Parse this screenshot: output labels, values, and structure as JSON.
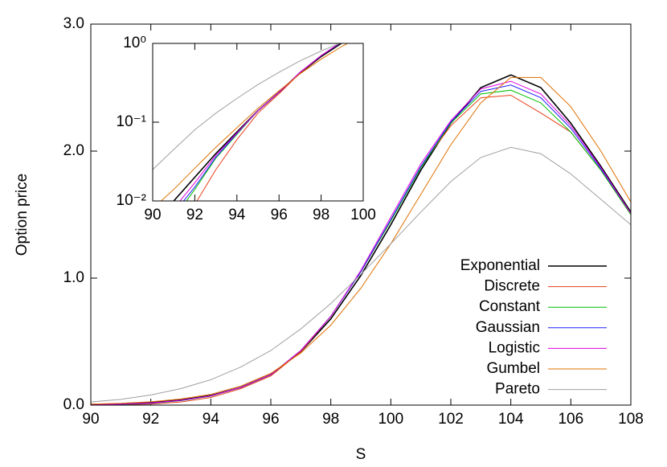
{
  "chart_data": {
    "type": "line",
    "xlabel": "S",
    "ylabel": "Option price",
    "x": [
      90,
      91,
      92,
      93,
      94,
      95,
      96,
      97,
      98,
      99,
      100,
      101,
      102,
      103,
      104,
      105,
      106,
      107,
      108
    ],
    "series": [
      {
        "name": "Exponential",
        "color": "#000000",
        "values": [
          0.005,
          0.01,
          0.02,
          0.04,
          0.075,
          0.14,
          0.24,
          0.42,
          0.68,
          1.02,
          1.42,
          1.85,
          2.22,
          2.5,
          2.6,
          2.5,
          2.22,
          1.88,
          1.52
        ]
      },
      {
        "name": "Discrete",
        "color": "#e8411a",
        "values": [
          0.002,
          0.004,
          0.009,
          0.025,
          0.06,
          0.13,
          0.23,
          0.42,
          0.7,
          1.05,
          1.45,
          1.88,
          2.2,
          2.42,
          2.44,
          2.3,
          2.15,
          1.85,
          1.5
        ]
      },
      {
        "name": "Constant",
        "color": "#00c000",
        "values": [
          0.003,
          0.006,
          0.014,
          0.035,
          0.07,
          0.14,
          0.24,
          0.43,
          0.7,
          1.05,
          1.45,
          1.87,
          2.22,
          2.45,
          2.48,
          2.38,
          2.15,
          1.85,
          1.5
        ]
      },
      {
        "name": "Gaussian",
        "color": "#2020ff",
        "values": [
          0.0035,
          0.007,
          0.015,
          0.036,
          0.072,
          0.14,
          0.24,
          0.43,
          0.7,
          1.05,
          1.46,
          1.88,
          2.23,
          2.47,
          2.52,
          2.42,
          2.18,
          1.86,
          1.51
        ]
      },
      {
        "name": "Logistic",
        "color": "#e000e0",
        "values": [
          0.004,
          0.008,
          0.017,
          0.038,
          0.073,
          0.14,
          0.24,
          0.43,
          0.7,
          1.06,
          1.48,
          1.9,
          2.24,
          2.49,
          2.55,
          2.45,
          2.2,
          1.87,
          1.51
        ]
      },
      {
        "name": "Gumbel",
        "color": "#e07000",
        "values": [
          0.008,
          0.014,
          0.026,
          0.048,
          0.085,
          0.15,
          0.25,
          0.41,
          0.63,
          0.92,
          1.27,
          1.66,
          2.05,
          2.38,
          2.58,
          2.58,
          2.35,
          2.0,
          1.6
        ]
      },
      {
        "name": "Pareto",
        "color": "#a0a0a0",
        "values": [
          0.025,
          0.045,
          0.08,
          0.13,
          0.2,
          0.3,
          0.43,
          0.6,
          0.8,
          1.03,
          1.27,
          1.52,
          1.76,
          1.95,
          2.03,
          1.98,
          1.82,
          1.62,
          1.42
        ]
      }
    ],
    "xlim": [
      90,
      108
    ],
    "xticks": [
      90,
      92,
      94,
      96,
      98,
      100,
      102,
      104,
      106,
      108
    ],
    "ylim": [
      0,
      3
    ],
    "yticks": [
      {
        "value": 0,
        "label": "0.0"
      },
      {
        "value": 1,
        "label": "1.0"
      },
      {
        "value": 2,
        "label": "2.0"
      },
      {
        "value": 3,
        "label": "3.0"
      }
    ],
    "legend": "lower right",
    "inset": {
      "xlim": [
        90,
        100
      ],
      "xticks": [
        90,
        92,
        94,
        96,
        98,
        100
      ],
      "ylim": [
        0.01,
        1
      ],
      "log_y": true,
      "yticks": [
        {
          "value": 0.01,
          "label": "10⁻²"
        },
        {
          "value": 0.1,
          "label": "10⁻¹"
        },
        {
          "value": 1,
          "label": "10⁰"
        }
      ]
    }
  }
}
